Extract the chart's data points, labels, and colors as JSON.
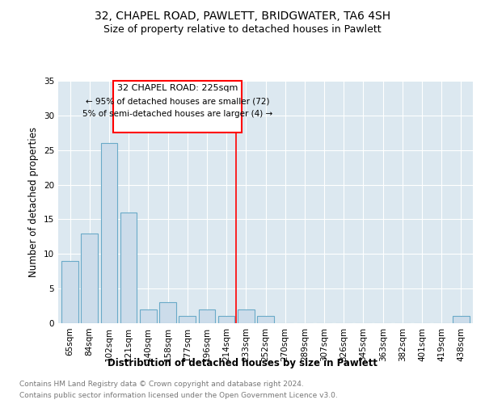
{
  "title1": "32, CHAPEL ROAD, PAWLETT, BRIDGWATER, TA6 4SH",
  "title2": "Size of property relative to detached houses in Pawlett",
  "xlabel": "Distribution of detached houses by size in Pawlett",
  "ylabel": "Number of detached properties",
  "categories": [
    "65sqm",
    "84sqm",
    "102sqm",
    "121sqm",
    "140sqm",
    "158sqm",
    "177sqm",
    "196sqm",
    "214sqm",
    "233sqm",
    "252sqm",
    "270sqm",
    "289sqm",
    "307sqm",
    "326sqm",
    "345sqm",
    "363sqm",
    "382sqm",
    "401sqm",
    "419sqm",
    "438sqm"
  ],
  "values": [
    9,
    13,
    26,
    16,
    2,
    3,
    1,
    2,
    1,
    2,
    1,
    0,
    0,
    0,
    0,
    0,
    0,
    0,
    0,
    0,
    1
  ],
  "bar_color": "#ccdcea",
  "bar_edge_color": "#6aaac8",
  "plot_bg_color": "#dce8f0",
  "red_line_x": 8.5,
  "annotation_title": "32 CHAPEL ROAD: 225sqm",
  "annotation_line1": "← 95% of detached houses are smaller (72)",
  "annotation_line2": "5% of semi-detached houses are larger (4) →",
  "ylim": [
    0,
    35
  ],
  "yticks": [
    0,
    5,
    10,
    15,
    20,
    25,
    30,
    35
  ],
  "footer1": "Contains HM Land Registry data © Crown copyright and database right 2024.",
  "footer2": "Contains public sector information licensed under the Open Government Licence v3.0.",
  "title_fontsize": 10,
  "subtitle_fontsize": 9,
  "axis_label_fontsize": 8.5,
  "tick_fontsize": 7.5,
  "footer_fontsize": 6.5
}
